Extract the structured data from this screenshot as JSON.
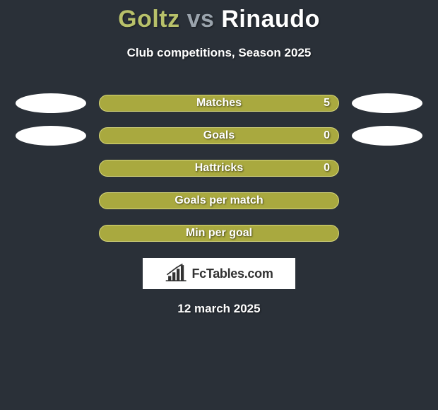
{
  "header": {
    "player1": "Goltz",
    "vs": "vs",
    "player2": "Rinaudo",
    "subtitle": "Club competitions, Season 2025",
    "player1_color": "#b8c16a",
    "player2_color": "#ffffff",
    "vs_color": "#9aa3ac"
  },
  "background_color": "#2a3038",
  "ellipse_left_color": "#ffffff",
  "ellipse_right_color": "#ffffff",
  "stats": [
    {
      "label": "Matches",
      "value": "5",
      "bar_color": "#a9a93f",
      "border_color": "#d6d67a",
      "show_left_ellipse": true,
      "show_right_ellipse": true,
      "show_value": true
    },
    {
      "label": "Goals",
      "value": "0",
      "bar_color": "#a9a93f",
      "border_color": "#d6d67a",
      "show_left_ellipse": true,
      "show_right_ellipse": true,
      "show_value": true
    },
    {
      "label": "Hattricks",
      "value": "0",
      "bar_color": "#a9a93f",
      "border_color": "#d6d67a",
      "show_left_ellipse": false,
      "show_right_ellipse": false,
      "show_value": true
    },
    {
      "label": "Goals per match",
      "value": "",
      "bar_color": "#a9a93f",
      "border_color": "#d6d67a",
      "show_left_ellipse": false,
      "show_right_ellipse": false,
      "show_value": false
    },
    {
      "label": "Min per goal",
      "value": "",
      "bar_color": "#a9a93f",
      "border_color": "#d6d67a",
      "show_left_ellipse": false,
      "show_right_ellipse": false,
      "show_value": false
    }
  ],
  "footer": {
    "logo_text": "FcTables.com",
    "date": "12 march 2025"
  }
}
